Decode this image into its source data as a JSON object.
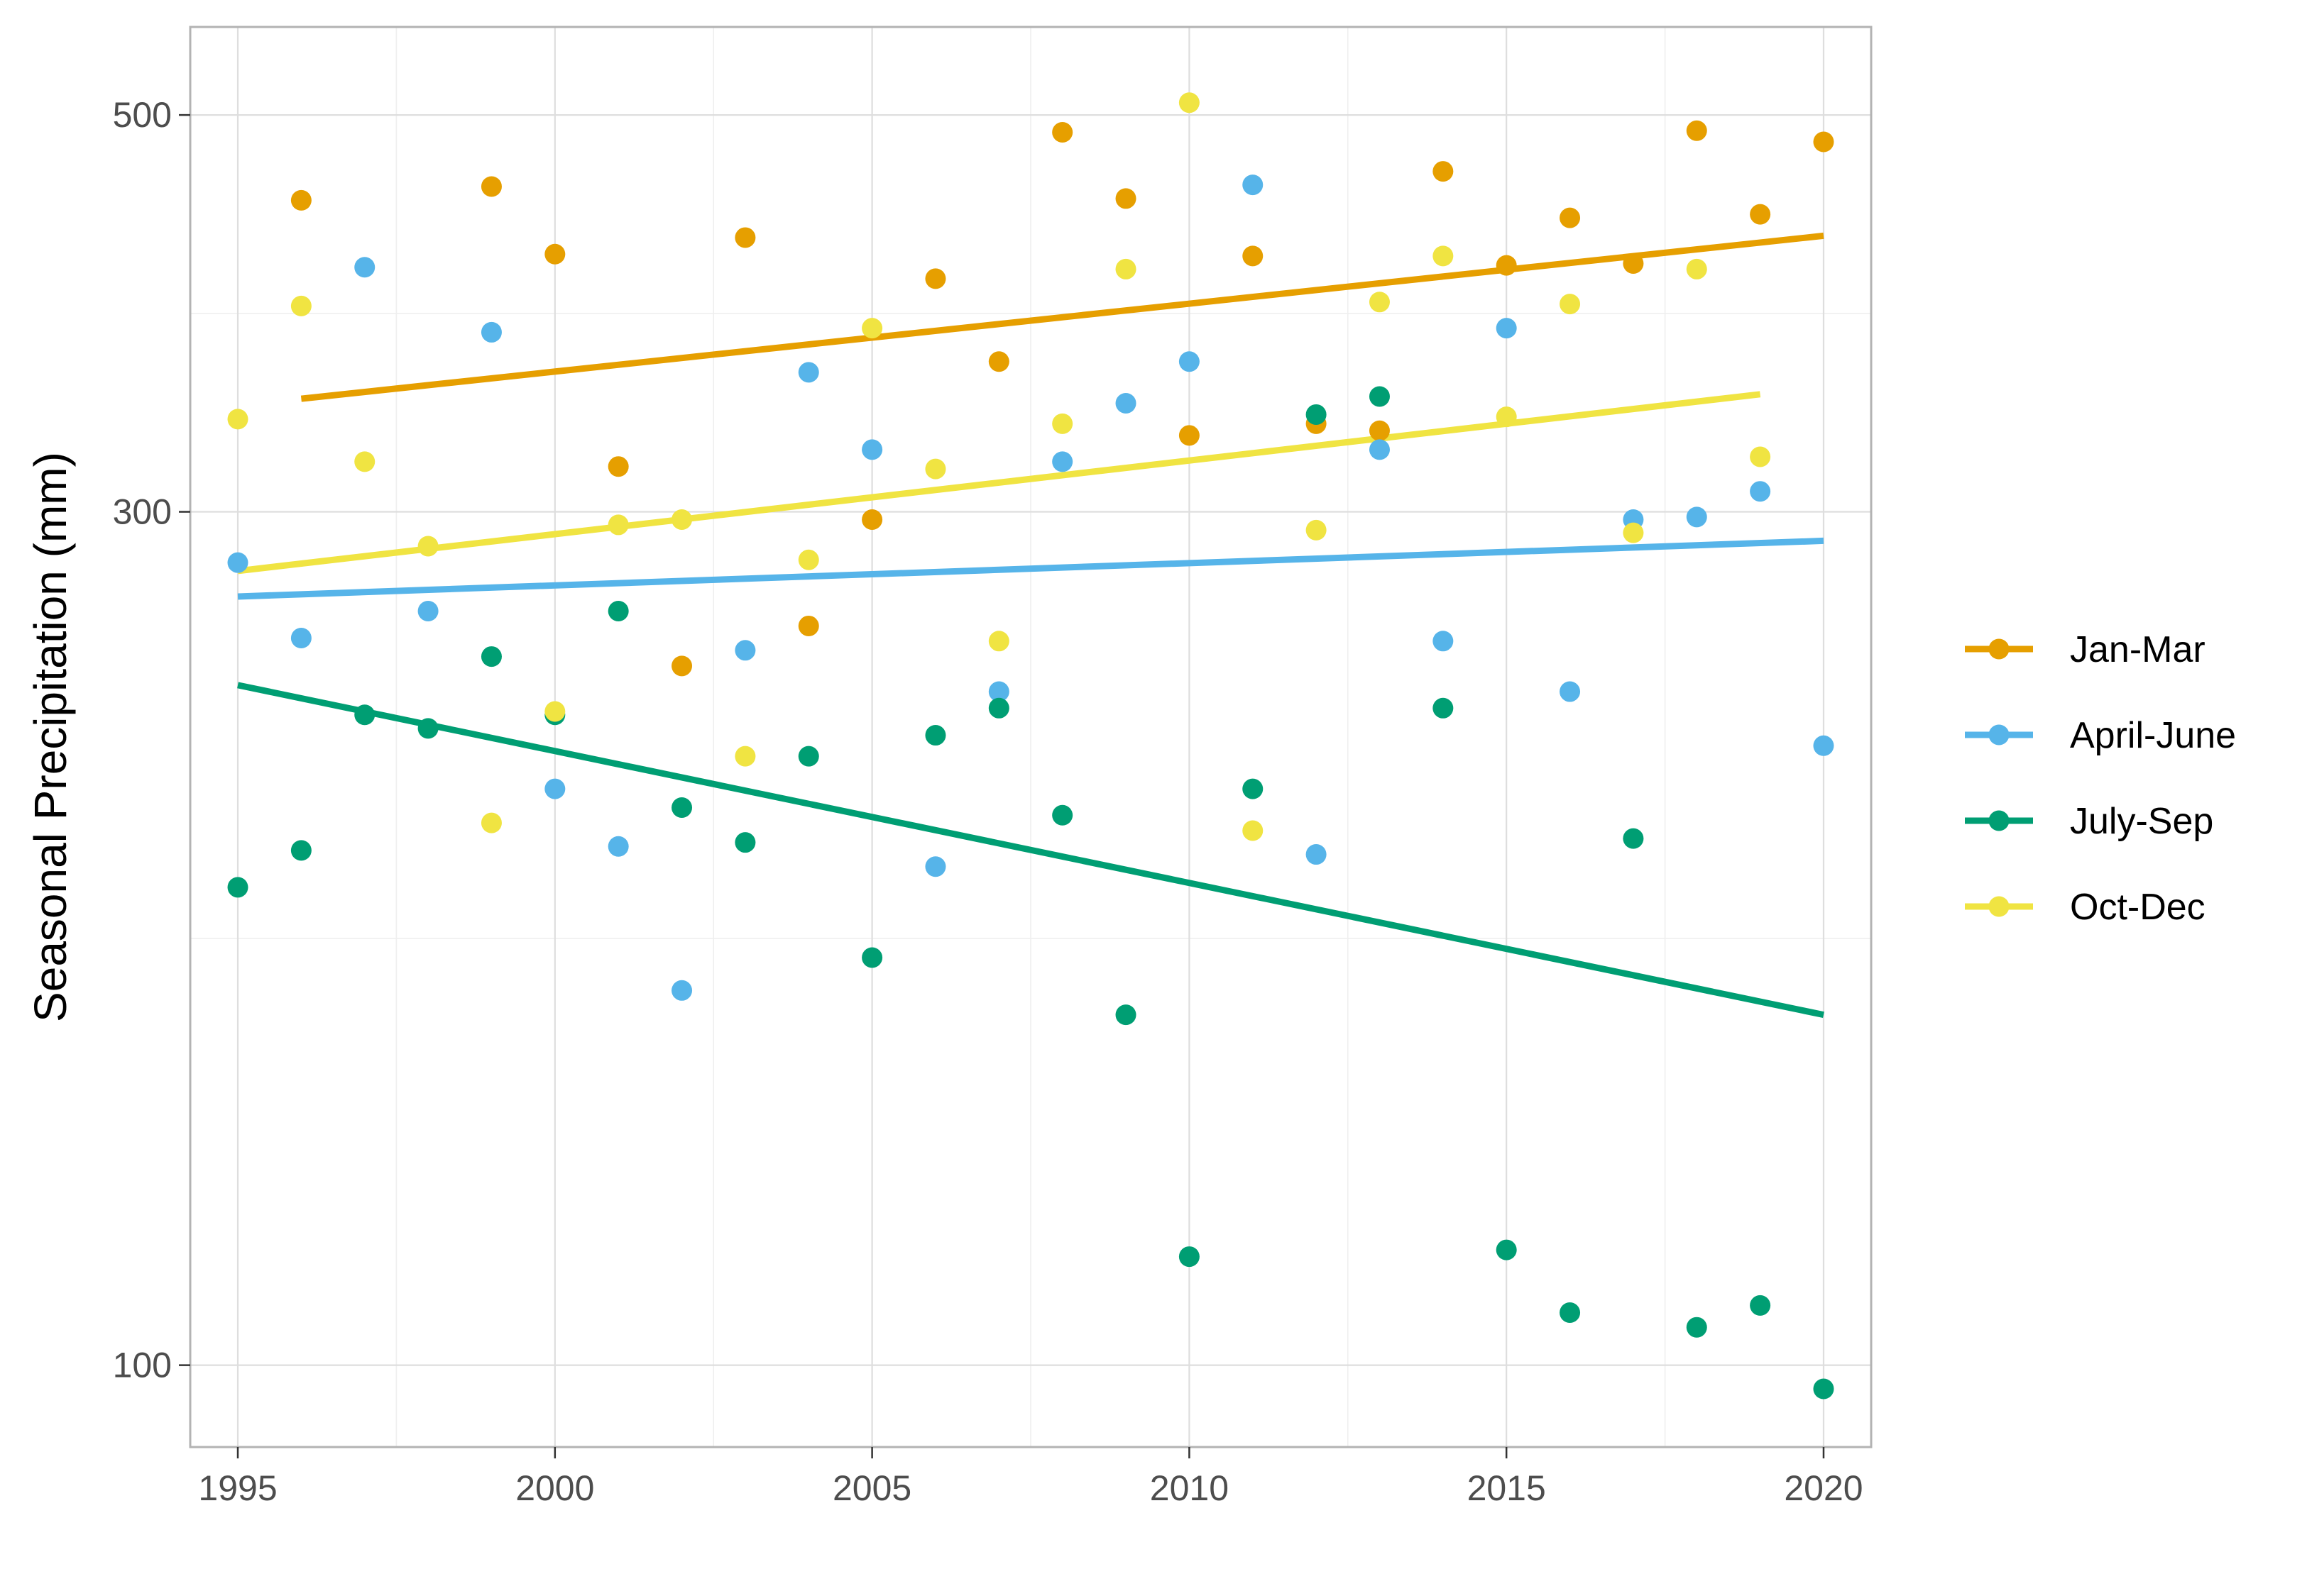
{
  "chart_data": {
    "type": "scatter",
    "title": "",
    "xlabel": "",
    "ylabel": "Seasonal Precipitation (mm)",
    "x_scale": "linear",
    "y_scale": "log",
    "xlim": [
      1994.25,
      2020.75
    ],
    "ylim": [
      90,
      560
    ],
    "x_ticks": [
      1995,
      2000,
      2005,
      2010,
      2015,
      2020
    ],
    "y_ticks": [
      100,
      300,
      500
    ],
    "x_tick_labels": [
      "1995",
      "2000",
      "2005",
      "2010",
      "2015",
      "2020"
    ],
    "y_tick_labels": [
      "100",
      "300",
      "500"
    ],
    "grid": true,
    "legend_position": "right",
    "series": [
      {
        "name": "Jan-Mar",
        "color": "#E69F00",
        "points": [
          [
            1996,
            448
          ],
          [
            1999,
            456
          ],
          [
            2000,
            418
          ],
          [
            2001,
            318
          ],
          [
            2002,
            246
          ],
          [
            2003,
            427
          ],
          [
            2004,
            259
          ],
          [
            2005,
            297
          ],
          [
            2006,
            405
          ],
          [
            2007,
            364
          ],
          [
            2008,
            489
          ],
          [
            2009,
            449
          ],
          [
            2010,
            331
          ],
          [
            2011,
            417
          ],
          [
            2012,
            336
          ],
          [
            2013,
            333
          ],
          [
            2014,
            465
          ],
          [
            2015,
            412
          ],
          [
            2016,
            438
          ],
          [
            2017,
            413
          ],
          [
            2018,
            490
          ],
          [
            2019,
            440
          ],
          [
            2020,
            483
          ]
        ],
        "trend": [
          [
            1996,
            347
          ],
          [
            2020,
            428
          ]
        ]
      },
      {
        "name": "April-June",
        "color": "#56B4E9",
        "points": [
          [
            1995,
            281
          ],
          [
            1996,
            255
          ],
          [
            1997,
            411
          ],
          [
            1998,
            264
          ],
          [
            1999,
            378
          ],
          [
            2000,
            210
          ],
          [
            2001,
            195
          ],
          [
            2002,
            162
          ],
          [
            2003,
            251
          ],
          [
            2004,
            359
          ],
          [
            2005,
            325
          ],
          [
            2006,
            190
          ],
          [
            2007,
            238
          ],
          [
            2008,
            320
          ],
          [
            2009,
            345
          ],
          [
            2010,
            364
          ],
          [
            2011,
            457
          ],
          [
            2012,
            193
          ],
          [
            2013,
            325
          ],
          [
            2014,
            254
          ],
          [
            2015,
            380
          ],
          [
            2016,
            238
          ],
          [
            2017,
            297
          ],
          [
            2018,
            298
          ],
          [
            2019,
            308
          ],
          [
            2020,
            222
          ]
        ],
        "trend": [
          [
            1995,
            269
          ],
          [
            2020,
            289
          ]
        ]
      },
      {
        "name": "July-Sep",
        "color": "#009E73",
        "points": [
          [
            1995,
            185
          ],
          [
            1996,
            194
          ],
          [
            1997,
            231
          ],
          [
            1998,
            227
          ],
          [
            1999,
            249
          ],
          [
            2000,
            231
          ],
          [
            2001,
            264
          ],
          [
            2002,
            205
          ],
          [
            2003,
            196
          ],
          [
            2004,
            219
          ],
          [
            2005,
            169
          ],
          [
            2006,
            225
          ],
          [
            2007,
            233
          ],
          [
            2008,
            203
          ],
          [
            2009,
            157
          ],
          [
            2010,
            115
          ],
          [
            2011,
            210
          ],
          [
            2012,
            340
          ],
          [
            2013,
            348
          ],
          [
            2014,
            233
          ],
          [
            2015,
            116
          ],
          [
            2016,
            107
          ],
          [
            2017,
            197
          ],
          [
            2018,
            105
          ],
          [
            2019,
            108
          ],
          [
            2020,
            97
          ]
        ],
        "trend": [
          [
            1995,
            240
          ],
          [
            2020,
            157
          ]
        ]
      },
      {
        "name": "Oct-Dec",
        "color": "#F0E442",
        "points": [
          [
            1995,
            338
          ],
          [
            1996,
            391
          ],
          [
            1997,
            320
          ],
          [
            1998,
            287
          ],
          [
            1999,
            201
          ],
          [
            2000,
            232
          ],
          [
            2001,
            295
          ],
          [
            2002,
            297
          ],
          [
            2003,
            219
          ],
          [
            2004,
            282
          ],
          [
            2005,
            380
          ],
          [
            2006,
            317
          ],
          [
            2007,
            254
          ],
          [
            2008,
            336
          ],
          [
            2009,
            410
          ],
          [
            2010,
            508
          ],
          [
            2011,
            199
          ],
          [
            2012,
            293
          ],
          [
            2013,
            393
          ],
          [
            2014,
            417
          ],
          [
            2015,
            339
          ],
          [
            2016,
            392
          ],
          [
            2017,
            292
          ],
          [
            2018,
            410
          ],
          [
            2019,
            322
          ]
        ],
        "trend": [
          [
            1995,
            278
          ],
          [
            2019,
            349
          ]
        ]
      }
    ]
  }
}
